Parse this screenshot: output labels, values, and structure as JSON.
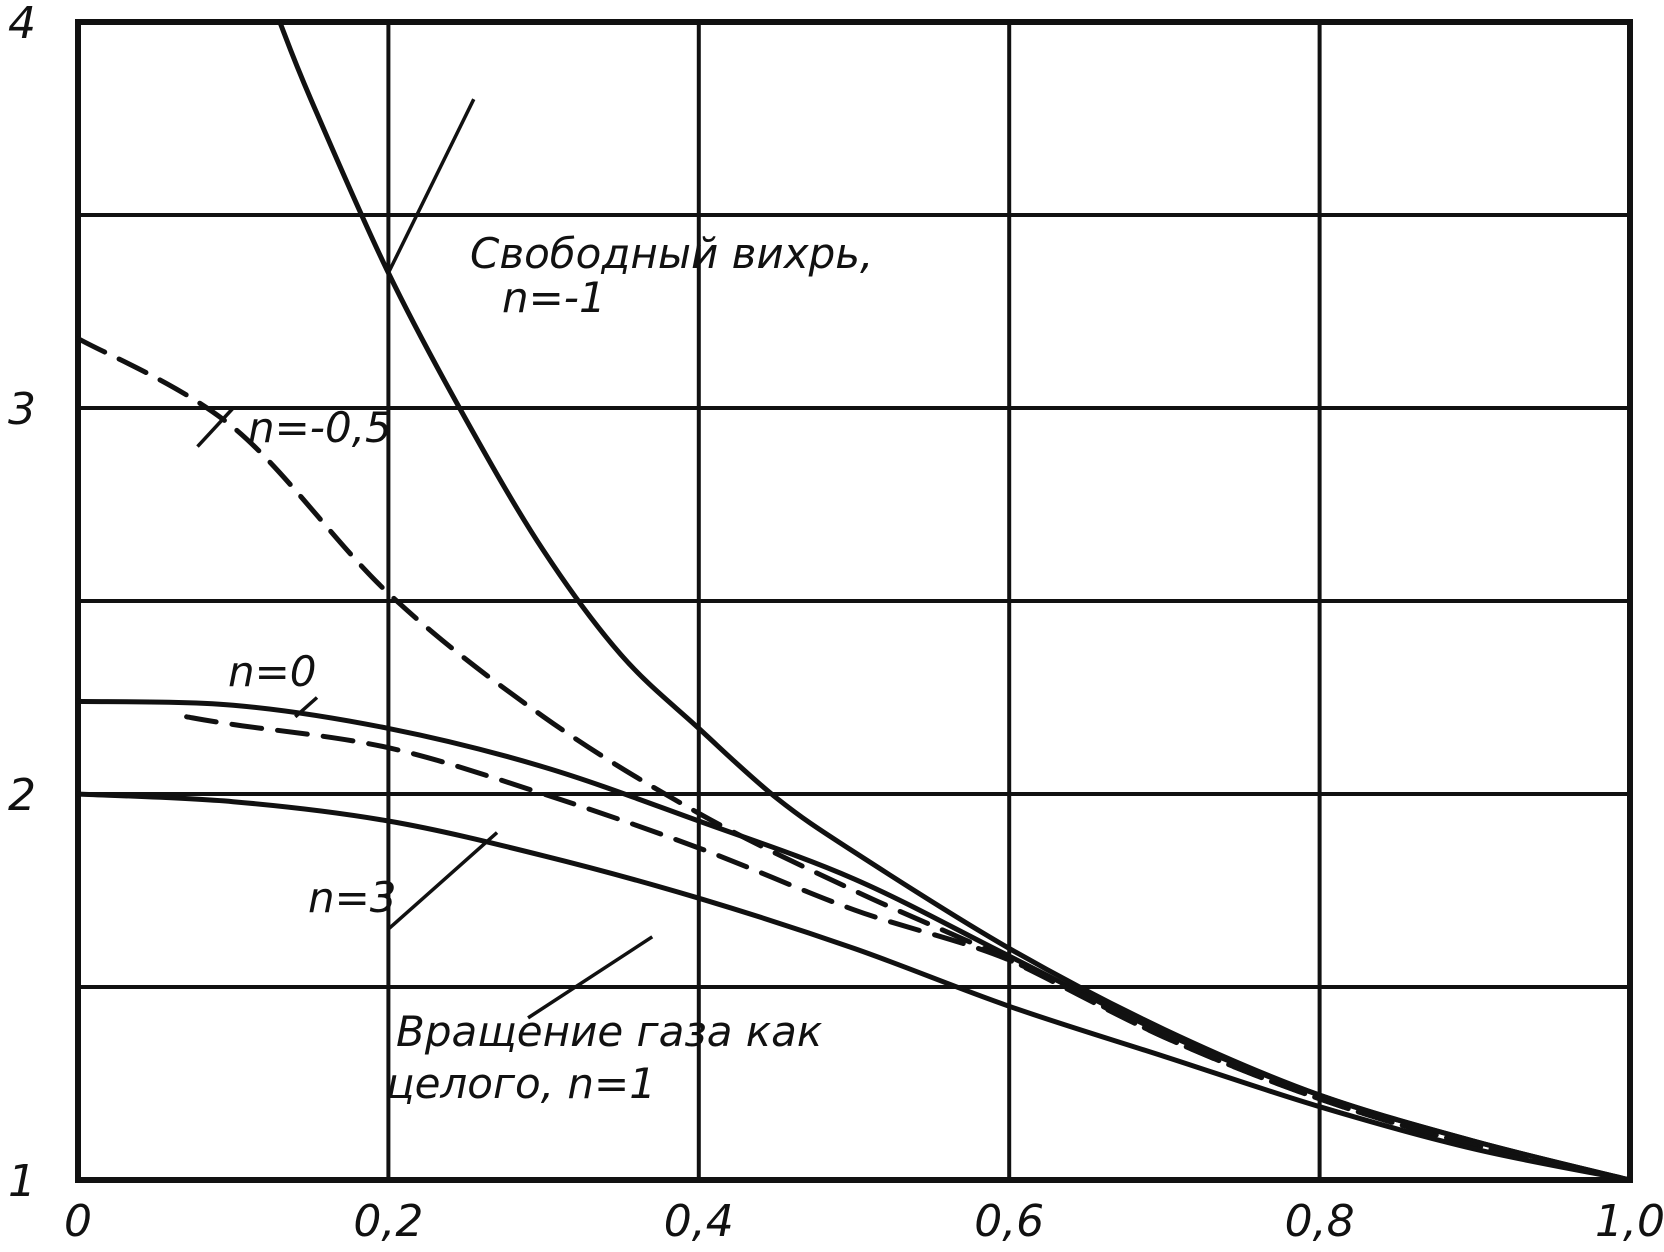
{
  "chart_data": {
    "type": "line",
    "title": "",
    "xlabel": "",
    "ylabel": "",
    "xlim": [
      0,
      1.0
    ],
    "ylim": [
      1,
      4
    ],
    "x_ticks": [
      0,
      0.2,
      0.4,
      0.6,
      0.8,
      1.0
    ],
    "x_tick_labels": [
      "0",
      "0,2",
      "0,4",
      "0,6",
      "0,8",
      "1,0"
    ],
    "y_ticks": [
      1,
      2,
      3,
      4
    ],
    "y_tick_labels": [
      "1",
      "2",
      "3",
      "4"
    ],
    "grid": true,
    "series": [
      {
        "name": "Свободный вихрь, n=-1",
        "style": "solid",
        "x": [
          0.13,
          0.15,
          0.2,
          0.25,
          0.3,
          0.35,
          0.4,
          0.45,
          0.5,
          0.6,
          0.7,
          0.8,
          0.9,
          1.0
        ],
        "y": [
          4.0,
          3.8,
          3.35,
          2.97,
          2.63,
          2.36,
          2.17,
          1.99,
          1.85,
          1.6,
          1.39,
          1.22,
          1.1,
          1.0
        ]
      },
      {
        "name": "n=-0,5",
        "style": "dashed",
        "x": [
          0.0,
          0.1,
          0.2,
          0.3,
          0.4,
          0.5,
          0.6,
          0.7,
          0.8,
          0.9,
          1.0
        ],
        "y": [
          3.18,
          2.95,
          2.52,
          2.2,
          1.95,
          1.75,
          1.57,
          1.37,
          1.21,
          1.09,
          1.0
        ]
      },
      {
        "name": "n=0",
        "style": "solid",
        "x": [
          0.0,
          0.1,
          0.2,
          0.3,
          0.4,
          0.5,
          0.6,
          0.7,
          0.8,
          0.9,
          1.0
        ],
        "y": [
          2.24,
          2.23,
          2.17,
          2.07,
          1.93,
          1.78,
          1.58,
          1.38,
          1.22,
          1.1,
          1.0
        ]
      },
      {
        "name": "n=3",
        "style": "dashed",
        "x": [
          0.07,
          0.1,
          0.2,
          0.3,
          0.4,
          0.5,
          0.6,
          0.7,
          0.8,
          0.9,
          1.0
        ],
        "y": [
          2.2,
          2.18,
          2.12,
          2.0,
          1.86,
          1.7,
          1.57,
          1.37,
          1.21,
          1.09,
          1.0
        ]
      },
      {
        "name": "Вращение газа как целого, n=1",
        "style": "solid",
        "x": [
          0.0,
          0.1,
          0.2,
          0.3,
          0.4,
          0.5,
          0.6,
          0.7,
          0.8,
          0.9,
          1.0
        ],
        "y": [
          2.0,
          1.98,
          1.93,
          1.84,
          1.73,
          1.6,
          1.45,
          1.32,
          1.19,
          1.08,
          1.0
        ]
      }
    ],
    "annotations": {
      "free_vortex_line1": "Свободный вихрь,",
      "free_vortex_line2": "n=-1",
      "n_minus_half": "n=-0,5",
      "n_zero": "n=0",
      "n_three": "n=3",
      "solid_rotation_line1": "Вращение газа как",
      "solid_rotation_line2": "целого, n=1"
    }
  }
}
